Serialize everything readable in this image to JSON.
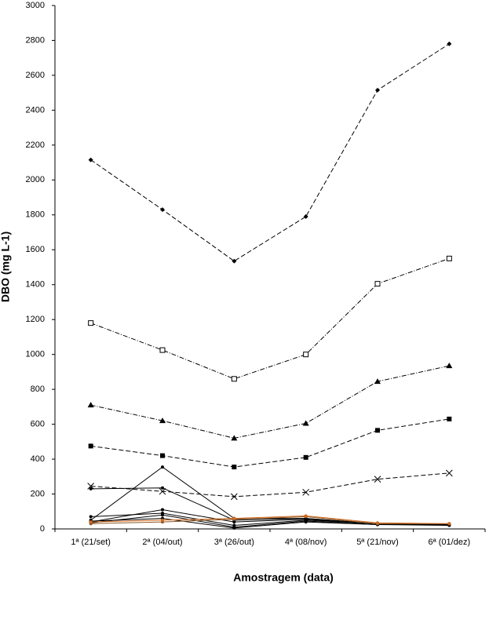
{
  "chart_data": {
    "type": "line",
    "x_label": "Amostragem (data)",
    "y_label": "DBO (mg L-1)",
    "categories": [
      "1ª (21/set)",
      "2ª (04/out)",
      "3ª (26/out)",
      "4ª (08/nov)",
      "5ª (21/nov)",
      "6ª (01/dez)"
    ],
    "ylim": [
      0,
      3000
    ],
    "yticks": [
      0,
      200,
      400,
      600,
      800,
      1000,
      1200,
      1400,
      1600,
      1800,
      2000,
      2200,
      2400,
      2600,
      2800,
      3000
    ],
    "grid": false,
    "series": [
      {
        "color": "#000000",
        "dash": "6,3",
        "marker": "diamond",
        "values": [
          2115,
          1830,
          1535,
          1790,
          2515,
          2780
        ]
      },
      {
        "color": "#000000",
        "dash": "6,2,1,2",
        "marker": "open-square",
        "values": [
          1180,
          1025,
          860,
          1000,
          1405,
          1550
        ]
      },
      {
        "color": "#000000",
        "dash": "6,2,1,2",
        "marker": "triangle",
        "values": [
          710,
          620,
          520,
          605,
          845,
          935
        ]
      },
      {
        "color": "#000000",
        "dash": "6,3",
        "marker": "square",
        "values": [
          475,
          420,
          355,
          410,
          565,
          630
        ]
      },
      {
        "color": "#000000",
        "dash": "6,3",
        "marker": "cross",
        "values": [
          245,
          215,
          185,
          210,
          285,
          320
        ]
      },
      {
        "color": "#000000",
        "dash": "none",
        "marker": "dot",
        "values": [
          50,
          355,
          60,
          60,
          30,
          30
        ]
      },
      {
        "color": "#000000",
        "dash": "none",
        "marker": "dot",
        "values": [
          230,
          235,
          50,
          60,
          30,
          25
        ]
      },
      {
        "color": "#000000",
        "dash": "none",
        "marker": "dot",
        "values": [
          70,
          90,
          20,
          50,
          30,
          25
        ]
      },
      {
        "color": "#000000",
        "dash": "none",
        "marker": "dot",
        "values": [
          40,
          110,
          40,
          55,
          30,
          25
        ]
      },
      {
        "color": "#000000",
        "dash": "none",
        "marker": "dot",
        "values": [
          35,
          80,
          10,
          45,
          25,
          20
        ]
      },
      {
        "color": "#000000",
        "dash": "none",
        "marker": "dot",
        "values": [
          45,
          60,
          5,
          40,
          25,
          25
        ]
      },
      {
        "color": "#8b5a2b",
        "dash": "none",
        "marker": "dot",
        "values": [
          30,
          40,
          55,
          70,
          30,
          30
        ]
      },
      {
        "color": "#d2691e",
        "dash": "none",
        "marker": "dot",
        "values": [
          40,
          50,
          60,
          75,
          35,
          30
        ]
      }
    ]
  }
}
